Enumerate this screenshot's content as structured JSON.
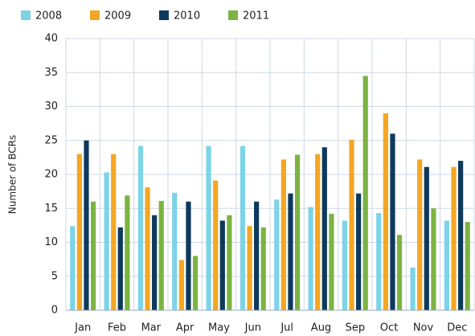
{
  "chart_data": {
    "type": "bar",
    "y_label": "Number of BCRs",
    "categories": [
      "Jan",
      "Feb",
      "Mar",
      "Apr",
      "May",
      "Jun",
      "Jul",
      "Aug",
      "Sep",
      "Oct",
      "Nov",
      "Dec"
    ],
    "series": [
      {
        "name": "2008",
        "color": "#7dd3e8",
        "values": [
          12.4,
          20.3,
          24.2,
          17.3,
          24.2,
          24.2,
          16.3,
          15.2,
          13.2,
          14.3,
          6.3,
          13.2
        ]
      },
      {
        "name": "2009",
        "color": "#f5a623",
        "values": [
          23,
          23,
          18.1,
          7.4,
          19.1,
          12.4,
          22.2,
          23,
          25.1,
          29,
          22.2,
          21.1
        ]
      },
      {
        "name": "2010",
        "color": "#0d3a5c",
        "values": [
          25,
          12.2,
          14,
          16,
          13.2,
          16,
          17.2,
          24,
          17.2,
          26,
          21.1,
          22
        ]
      },
      {
        "name": "2011",
        "color": "#7cb342",
        "values": [
          16,
          16.9,
          16.1,
          8,
          14,
          12.2,
          22.9,
          14.2,
          34.5,
          11.1,
          15,
          13
        ]
      }
    ],
    "ylim": [
      0,
      40
    ],
    "yticks": [
      0,
      5,
      10,
      15,
      20,
      25,
      30,
      35,
      40
    ],
    "grid": true
  }
}
